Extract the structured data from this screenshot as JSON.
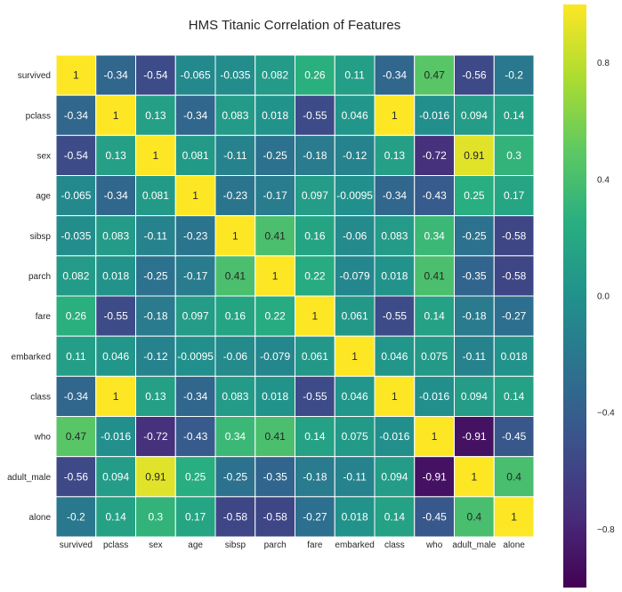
{
  "chart_data": {
    "type": "heatmap",
    "title": "HMS Titanic Correlation of Features",
    "xlabel": "",
    "ylabel": "",
    "features": [
      "survived",
      "pclass",
      "sex",
      "age",
      "sibsp",
      "parch",
      "fare",
      "embarked",
      "class",
      "who",
      "adult_male",
      "alone"
    ],
    "matrix": [
      [
        1,
        -0.34,
        -0.54,
        -0.065,
        -0.035,
        0.082,
        0.26,
        0.11,
        -0.34,
        0.47,
        -0.56,
        -0.2
      ],
      [
        -0.34,
        1,
        0.13,
        -0.34,
        0.083,
        0.018,
        -0.55,
        0.046,
        1,
        -0.016,
        0.094,
        0.14
      ],
      [
        -0.54,
        0.13,
        1,
        0.081,
        -0.11,
        -0.25,
        -0.18,
        -0.12,
        0.13,
        -0.72,
        0.91,
        0.3
      ],
      [
        -0.065,
        -0.34,
        0.081,
        1,
        -0.23,
        -0.17,
        0.097,
        -0.0095,
        -0.34,
        -0.43,
        0.25,
        0.17
      ],
      [
        -0.035,
        0.083,
        -0.11,
        -0.23,
        1,
        0.41,
        0.16,
        -0.06,
        0.083,
        0.34,
        -0.25,
        -0.58
      ],
      [
        0.082,
        0.018,
        -0.25,
        -0.17,
        0.41,
        1,
        0.22,
        -0.079,
        0.018,
        0.41,
        -0.35,
        -0.58
      ],
      [
        0.26,
        -0.55,
        -0.18,
        0.097,
        0.16,
        0.22,
        1,
        0.061,
        -0.55,
        0.14,
        -0.18,
        -0.27
      ],
      [
        0.11,
        0.046,
        -0.12,
        -0.0095,
        -0.06,
        -0.079,
        0.061,
        1,
        0.046,
        0.075,
        -0.11,
        0.018
      ],
      [
        -0.34,
        1,
        0.13,
        -0.34,
        0.083,
        0.018,
        -0.55,
        0.046,
        1,
        -0.016,
        0.094,
        0.14
      ],
      [
        0.47,
        -0.016,
        -0.72,
        -0.43,
        0.34,
        0.41,
        0.14,
        0.075,
        -0.016,
        1,
        -0.91,
        -0.45
      ],
      [
        -0.56,
        0.094,
        0.91,
        0.25,
        -0.25,
        -0.35,
        -0.18,
        -0.11,
        0.094,
        -0.91,
        1,
        0.4
      ],
      [
        -0.2,
        0.14,
        0.3,
        0.17,
        -0.58,
        -0.58,
        -0.27,
        0.018,
        0.14,
        -0.45,
        0.4,
        1
      ]
    ],
    "colormap": "viridis",
    "vmin": -1,
    "vmax": 1,
    "colorbar": {
      "ticks": [
        0.8,
        0.4,
        0.0,
        -0.4,
        -0.8
      ],
      "tick_labels": [
        "0.8",
        "0.4",
        "0.0",
        "−0.4",
        "−0.8"
      ],
      "placement": "right"
    },
    "annotated": true,
    "cell_border_color": "#ffffff",
    "text_colors": {
      "dark": "#262626",
      "light": "#ffffff"
    }
  }
}
